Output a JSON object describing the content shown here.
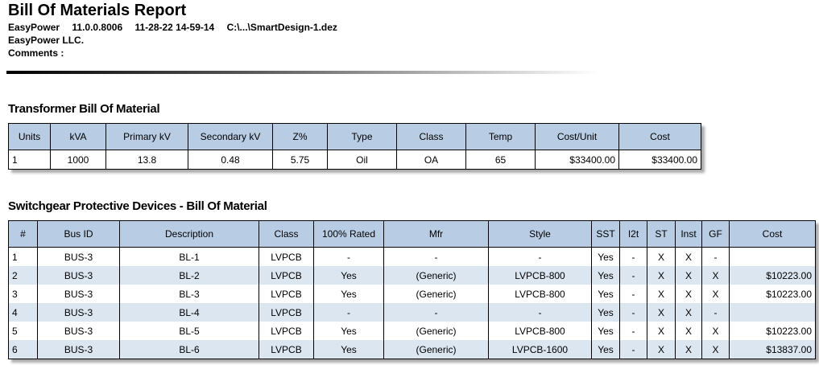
{
  "header": {
    "title": "Bill Of Materials Report",
    "product": "EasyPower",
    "version": "11.0.0.8006",
    "datetime": "11-28-22 14-59-14",
    "file": "C:\\...\\SmartDesign-1.dez",
    "company": "EasyPower LLC.",
    "comments": "Comments :"
  },
  "transformer": {
    "title": "Transformer Bill Of Material",
    "columns": [
      "Units",
      "kVA",
      "Primary kV",
      "Secondary kV",
      "Z%",
      "Type",
      "Class",
      "Temp",
      "Cost/Unit",
      "Cost"
    ],
    "rows": [
      [
        "1",
        "1000",
        "13.8",
        "0.48",
        "5.75",
        "Oil",
        "OA",
        "65",
        "$33400.00",
        "$33400.00"
      ]
    ]
  },
  "switchgear": {
    "title": "Switchgear Protective Devices - Bill Of Material",
    "columns": [
      "#",
      "Bus ID",
      "Description",
      "Class",
      "100% Rated",
      "Mfr",
      "Style",
      "SST",
      "I2t",
      "ST",
      "Inst",
      "GF",
      "Cost"
    ],
    "rows": [
      [
        "1",
        "BUS-3",
        "BL-1",
        "LVPCB",
        "-",
        "-",
        "-",
        "Yes",
        "-",
        "X",
        "X",
        "-",
        null
      ],
      [
        "2",
        "BUS-3",
        "BL-2",
        "LVPCB",
        "Yes",
        "(Generic)",
        "LVPCB-800",
        "Yes",
        "-",
        "X",
        "X",
        "X",
        "$10223.00"
      ],
      [
        "3",
        "BUS-3",
        "BL-3",
        "LVPCB",
        "Yes",
        "(Generic)",
        "LVPCB-800",
        "Yes",
        "-",
        "X",
        "X",
        "X",
        "$10223.00"
      ],
      [
        "4",
        "BUS-3",
        "BL-4",
        "LVPCB",
        "-",
        "-",
        "-",
        "Yes",
        "-",
        "X",
        "X",
        "-",
        null
      ],
      [
        "5",
        "BUS-3",
        "BL-5",
        "LVPCB",
        "Yes",
        "(Generic)",
        "LVPCB-800",
        "Yes",
        "-",
        "X",
        "X",
        "X",
        "$10223.00"
      ],
      [
        "6",
        "BUS-3",
        "BL-6",
        "LVPCB",
        "Yes",
        "(Generic)",
        "LVPCB-1600",
        "Yes",
        "-",
        "X",
        "X",
        "X",
        "$13837.00"
      ]
    ]
  }
}
